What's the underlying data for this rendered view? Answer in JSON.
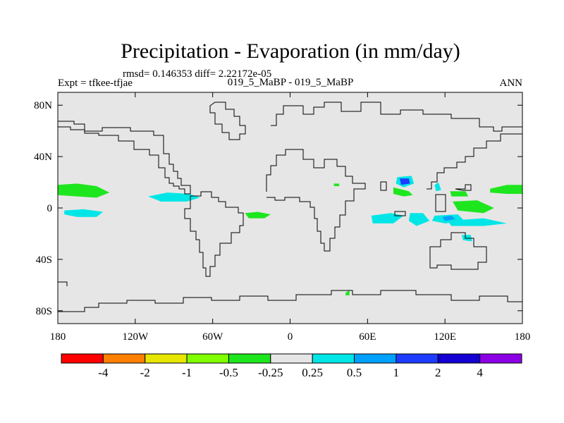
{
  "chart_data": {
    "type": "heatmap",
    "title": "Precipitation - Evaporation (in mm/day)",
    "subtitle": "rmsd= 0.146353 diff= 2.22172e-05",
    "left_label": "Expt = tfkee-tfjae",
    "center_label": "019_5_MaBP - 019_5_MaBP",
    "right_label": "ANN",
    "x_ticks": [
      "180",
      "120W",
      "60W",
      "0",
      "60E",
      "120E",
      "180"
    ],
    "y_ticks": [
      "80N",
      "40N",
      "0",
      "40S",
      "80S"
    ],
    "x_tick_values": [
      -180,
      -120,
      -60,
      0,
      60,
      120,
      180
    ],
    "y_tick_values": [
      80,
      40,
      0,
      -40,
      -80
    ],
    "xlim": [
      -180,
      180
    ],
    "ylim": [
      -90,
      90
    ],
    "background_color": "#e6e6e6",
    "colorbar": {
      "colors": [
        "#ff0000",
        "#ff8000",
        "#e6e600",
        "#80ff00",
        "#1ee61e",
        "#e6e6e6",
        "#00e6e6",
        "#00a0ff",
        "#1e3cff",
        "#1400d2",
        "#8c00e6"
      ],
      "labels": [
        "-4",
        "-2",
        "-1",
        "-0.5",
        "-0.25",
        "0.25",
        "0.5",
        "1",
        "2",
        "4"
      ]
    },
    "anomaly_regions": [
      {
        "color": "#1ee61e",
        "points": [
          [
            -180,
            18
          ],
          [
            -165,
            19
          ],
          [
            -150,
            17
          ],
          [
            -140,
            12
          ],
          [
            -150,
            8
          ],
          [
            -165,
            9
          ],
          [
            -180,
            10
          ]
        ]
      },
      {
        "color": "#1ee61e",
        "points": [
          [
            155,
            15
          ],
          [
            168,
            18
          ],
          [
            180,
            18
          ],
          [
            180,
            11
          ],
          [
            168,
            11
          ],
          [
            155,
            12
          ]
        ]
      },
      {
        "color": "#00e6e6",
        "points": [
          [
            -175,
            -2
          ],
          [
            -160,
            -1
          ],
          [
            -145,
            -3
          ],
          [
            -150,
            -7
          ],
          [
            -165,
            -7
          ],
          [
            -175,
            -5
          ]
        ]
      },
      {
        "color": "#00e6e6",
        "points": [
          [
            -110,
            9
          ],
          [
            -95,
            12
          ],
          [
            -78,
            11
          ],
          [
            -70,
            8
          ],
          [
            -80,
            5
          ],
          [
            -100,
            5
          ]
        ]
      },
      {
        "color": "#1ee61e",
        "points": [
          [
            -35,
            -4
          ],
          [
            -25,
            -3
          ],
          [
            -15,
            -5
          ],
          [
            -20,
            -8
          ],
          [
            -32,
            -8
          ]
        ]
      },
      {
        "color": "#1ee61e",
        "points": [
          [
            80,
            16
          ],
          [
            92,
            13
          ],
          [
            95,
            10
          ],
          [
            88,
            9
          ],
          [
            80,
            11
          ]
        ]
      },
      {
        "color": "#00e6e6",
        "points": [
          [
            83,
            24
          ],
          [
            94,
            25
          ],
          [
            96,
            19
          ],
          [
            88,
            16
          ],
          [
            82,
            19
          ]
        ]
      },
      {
        "color": "#1e3cff",
        "points": [
          [
            85,
            23
          ],
          [
            92,
            23
          ],
          [
            93,
            19
          ],
          [
            86,
            18
          ]
        ]
      },
      {
        "color": "#00e6e6",
        "points": [
          [
            63,
            -6
          ],
          [
            78,
            -4
          ],
          [
            88,
            -6
          ],
          [
            80,
            -12
          ],
          [
            64,
            -12
          ]
        ]
      },
      {
        "color": "#00e6e6",
        "points": [
          [
            93,
            -4
          ],
          [
            103,
            -4
          ],
          [
            108,
            -10
          ],
          [
            98,
            -14
          ],
          [
            92,
            -10
          ]
        ]
      },
      {
        "color": "#00e6e6",
        "points": [
          [
            112,
            -6
          ],
          [
            130,
            -5
          ],
          [
            135,
            -10
          ],
          [
            120,
            -12
          ],
          [
            110,
            -10
          ]
        ]
      },
      {
        "color": "#00e6e6",
        "points": [
          [
            122,
            -10
          ],
          [
            150,
            -8
          ],
          [
            168,
            -12
          ],
          [
            150,
            -14
          ],
          [
            125,
            -14
          ]
        ]
      },
      {
        "color": "#00a0ff",
        "points": [
          [
            118,
            -7
          ],
          [
            125,
            -6
          ],
          [
            128,
            -9
          ],
          [
            120,
            -10
          ]
        ]
      },
      {
        "color": "#1ee61e",
        "points": [
          [
            126,
            5
          ],
          [
            145,
            6
          ],
          [
            158,
            0
          ],
          [
            150,
            -4
          ],
          [
            130,
            -2
          ]
        ]
      },
      {
        "color": "#1ee61e",
        "points": [
          [
            124,
            13
          ],
          [
            136,
            13
          ],
          [
            138,
            9
          ],
          [
            125,
            9
          ]
        ]
      },
      {
        "color": "#00e6e6",
        "points": [
          [
            133,
            -21
          ],
          [
            140,
            -21
          ],
          [
            141,
            -26
          ],
          [
            134,
            -25
          ]
        ]
      },
      {
        "color": "#00e6e6",
        "points": [
          [
            112,
            18
          ],
          [
            115,
            20
          ],
          [
            117,
            14
          ],
          [
            113,
            13
          ]
        ]
      },
      {
        "color": "#1ee61e",
        "points": [
          [
            43,
            -66
          ],
          [
            46,
            -64
          ],
          [
            46,
            -68
          ],
          [
            43,
            -68
          ]
        ]
      },
      {
        "color": "#1ee61e",
        "points": [
          [
            34,
            19
          ],
          [
            38,
            19
          ],
          [
            38,
            17
          ],
          [
            34,
            17
          ]
        ]
      }
    ]
  }
}
